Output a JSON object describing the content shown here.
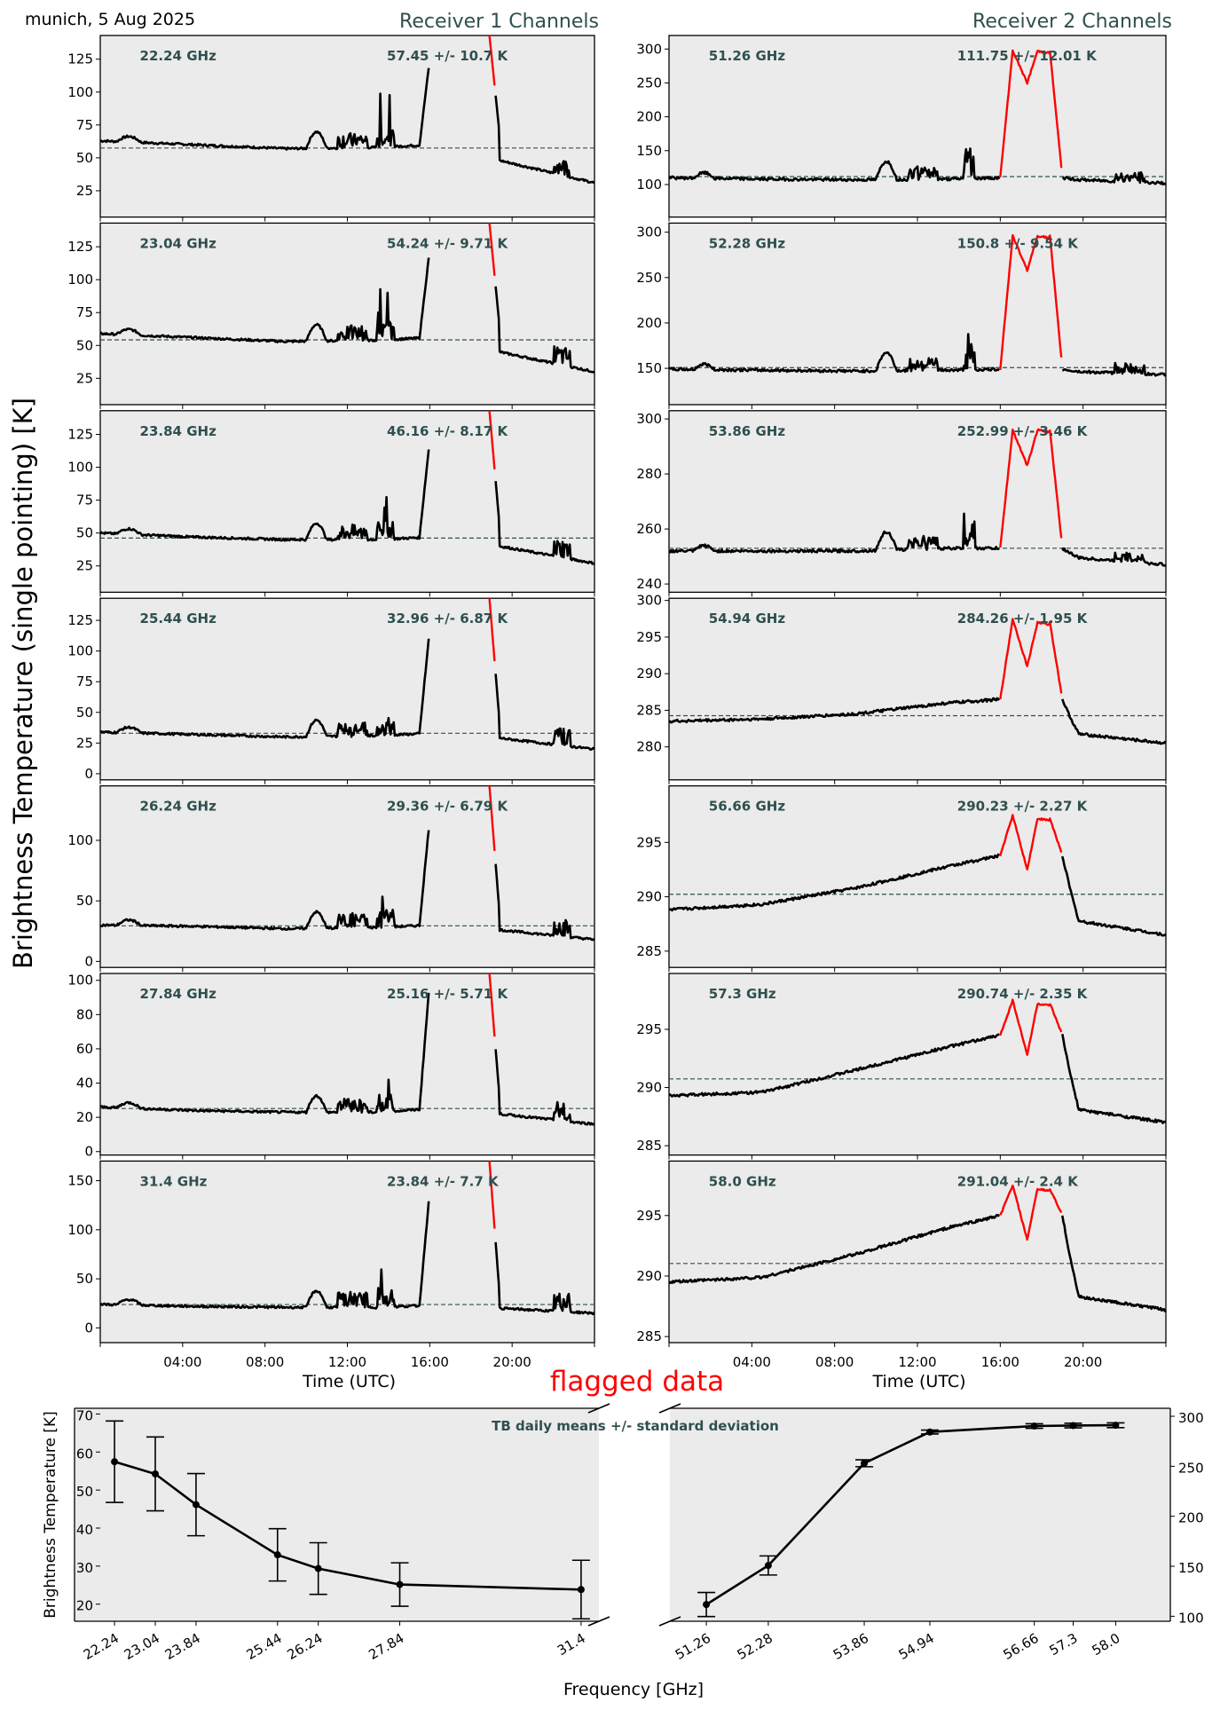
{
  "header": {
    "location_date": "munich, 5 Aug 2025",
    "receiver1_title": "Receiver 1 Channels",
    "receiver2_title": "Receiver 2 Channels",
    "ylabel": "Brightness Temperature (single pointing) [K]",
    "flagged_label": "flagged data"
  },
  "colors": {
    "panel_bg": "#ebebeb",
    "series": "#000000",
    "flagged": "#ff0000",
    "annotation": "#2f4f4f",
    "mean_line": "#2f4f4f"
  },
  "chart_data": [
    {
      "type": "line",
      "title": "Receiver 1 Channels",
      "xlabel": "Time (UTC)",
      "xticks": [
        "04:00",
        "08:00",
        "12:00",
        "16:00",
        "20:00"
      ],
      "xlim_hours": [
        0,
        24
      ],
      "panels": [
        {
          "freq_label": "22.24 GHz",
          "stats_label": "57.45 +/- 10.7 K",
          "mean": 57.45,
          "ylim": [
            5,
            143
          ],
          "yticks": [
            25,
            50,
            75,
            100,
            125
          ],
          "base": [
            63,
            60,
            57,
            58,
            60
          ],
          "tail": [
            48,
            31
          ],
          "spike": 125
        },
        {
          "freq_label": "23.04 GHz",
          "stats_label": "54.24 +/- 9.71 K",
          "mean": 54.24,
          "ylim": [
            5,
            143
          ],
          "yticks": [
            25,
            50,
            75,
            100,
            125
          ],
          "base": [
            59,
            56,
            53,
            54,
            56
          ],
          "tail": [
            45,
            30
          ],
          "spike": 123
        },
        {
          "freq_label": "23.84 GHz",
          "stats_label": "46.16 +/- 8.17 K",
          "mean": 46.16,
          "ylim": [
            5,
            143
          ],
          "yticks": [
            25,
            50,
            75,
            100,
            125
          ],
          "base": [
            50,
            47,
            45,
            45,
            47
          ],
          "tail": [
            40,
            27
          ],
          "spike": 121
        },
        {
          "freq_label": "25.44 GHz",
          "stats_label": "32.96 +/- 6.87 K",
          "mean": 32.96,
          "ylim": [
            -5,
            143
          ],
          "yticks": [
            0,
            25,
            50,
            75,
            100,
            125
          ],
          "base": [
            34,
            32,
            30,
            31,
            33
          ],
          "tail": [
            29,
            20
          ],
          "spike": 118
        },
        {
          "freq_label": "26.24 GHz",
          "stats_label": "29.36 +/- 6.79 K",
          "mean": 29.36,
          "ylim": [
            -5,
            145
          ],
          "yticks": [
            0,
            50,
            100
          ],
          "base": [
            30,
            29,
            27,
            28,
            30
          ],
          "tail": [
            26,
            18
          ],
          "spike": 118
        },
        {
          "freq_label": "27.84 GHz",
          "stats_label": "25.16 +/- 5.71 K",
          "mean": 25.16,
          "ylim": [
            -2,
            104
          ],
          "yticks": [
            0,
            20,
            40,
            60,
            80,
            100
          ],
          "base": [
            26,
            24,
            23,
            23,
            25
          ],
          "tail": [
            22,
            16
          ],
          "spike": 100
        },
        {
          "freq_label": "31.4 GHz",
          "stats_label": "23.84 +/- 7.7 K",
          "mean": 23.84,
          "ylim": [
            -15,
            170
          ],
          "yticks": [
            0,
            50,
            100,
            150
          ],
          "base": [
            24,
            22,
            21,
            21,
            23
          ],
          "tail": [
            20,
            15
          ],
          "spike": 140
        }
      ]
    },
    {
      "type": "line",
      "title": "Receiver 2 Channels",
      "xlabel": "Time (UTC)",
      "xticks": [
        "04:00",
        "08:00",
        "12:00",
        "16:00",
        "20:00"
      ],
      "xlim_hours": [
        0,
        24
      ],
      "panels": [
        {
          "freq_label": "51.26 GHz",
          "stats_label": "111.75 +/- 12.01 K",
          "mean": 111.75,
          "ylim": [
            52,
            320
          ],
          "yticks": [
            100,
            150,
            200,
            250,
            300
          ],
          "base": [
            110,
            108,
            107,
            108,
            110
          ],
          "tail": [
            108,
            102
          ],
          "peak": [
            298,
            250,
            297
          ]
        },
        {
          "freq_label": "52.28 GHz",
          "stats_label": "150.8 +/- 9.54 K",
          "mean": 150.8,
          "ylim": [
            110,
            310
          ],
          "yticks": [
            150,
            200,
            250,
            300
          ],
          "base": [
            149,
            148,
            147,
            148,
            149
          ],
          "tail": [
            147,
            143
          ],
          "peak": [
            296,
            258,
            296
          ]
        },
        {
          "freq_label": "53.86 GHz",
          "stats_label": "252.99 +/- 3.46 K",
          "mean": 252.99,
          "ylim": [
            237,
            303
          ],
          "yticks": [
            240,
            260,
            280,
            300
          ],
          "base": [
            252,
            252,
            252,
            253,
            253
          ],
          "tail": [
            250,
            247
          ],
          "peak": [
            296,
            283,
            296
          ]
        },
        {
          "freq_label": "54.94 GHz",
          "stats_label": "284.26 +/- 1.95 K",
          "mean": 284.26,
          "ylim": [
            275.5,
            300.3
          ],
          "yticks": [
            280,
            285,
            290,
            295,
            300
          ],
          "base": [
            283.5,
            283.8,
            284.5,
            286,
            286.5
          ],
          "tail": [
            282,
            280.5
          ],
          "peak": [
            297.5,
            291,
            297
          ]
        },
        {
          "freq_label": "56.66 GHz",
          "stats_label": "290.23 +/- 2.27 K",
          "mean": 290.23,
          "ylim": [
            283.5,
            300.2
          ],
          "yticks": [
            285,
            290,
            295
          ],
          "base": [
            288.8,
            289.3,
            290.8,
            292.8,
            293.8
          ],
          "tail": [
            288,
            286.5
          ],
          "peak": [
            297.5,
            292.5,
            297.2
          ]
        },
        {
          "freq_label": "57.3 GHz",
          "stats_label": "290.74 +/- 2.35 K",
          "mean": 290.74,
          "ylim": [
            284.2,
            299.8
          ],
          "yticks": [
            285,
            290,
            295
          ],
          "base": [
            289.3,
            289.6,
            291.5,
            293.5,
            294.5
          ],
          "tail": [
            288.3,
            287
          ],
          "peak": [
            297.5,
            292.8,
            297.2
          ]
        },
        {
          "freq_label": "58.0 GHz",
          "stats_label": "291.04 +/- 2.4 K",
          "mean": 291.04,
          "ylim": [
            284.5,
            299.5
          ],
          "yticks": [
            285,
            290,
            295
          ],
          "base": [
            289.5,
            289.9,
            291.8,
            294,
            295
          ],
          "tail": [
            288.5,
            287.2
          ],
          "peak": [
            297.5,
            293,
            297.2
          ]
        }
      ]
    },
    {
      "type": "line",
      "title": "TB daily means +/- standard deviation",
      "xlabel": "Frequency [GHz]",
      "ylabel": "Brightness Temperature [K]",
      "left": {
        "x": [
          22.24,
          23.04,
          23.84,
          25.44,
          26.24,
          27.84,
          31.4
        ],
        "xtick_labels": [
          "22.24",
          "23.04",
          "23.84",
          "25.44",
          "26.24",
          "27.84",
          "31.4"
        ],
        "y": [
          57.45,
          54.24,
          46.16,
          32.96,
          29.36,
          25.16,
          23.84
        ],
        "err": [
          10.7,
          9.71,
          8.17,
          6.87,
          6.79,
          5.71,
          7.7
        ],
        "ylim": [
          15.5,
          71.5
        ],
        "yticks": [
          20,
          30,
          40,
          50,
          60,
          70
        ]
      },
      "right": {
        "x": [
          51.26,
          52.28,
          53.86,
          54.94,
          56.66,
          57.3,
          58.0
        ],
        "xtick_labels": [
          "51.26",
          "52.28",
          "53.86",
          "54.94",
          "56.66",
          "57.3",
          "58.0"
        ],
        "y": [
          111.75,
          150.8,
          252.99,
          284.26,
          290.23,
          290.74,
          291.04
        ],
        "err": [
          12.01,
          9.54,
          3.46,
          1.95,
          2.27,
          2.35,
          2.4
        ],
        "ylim": [
          95,
          308
        ],
        "yticks": [
          100,
          150,
          200,
          250,
          300
        ]
      }
    }
  ]
}
